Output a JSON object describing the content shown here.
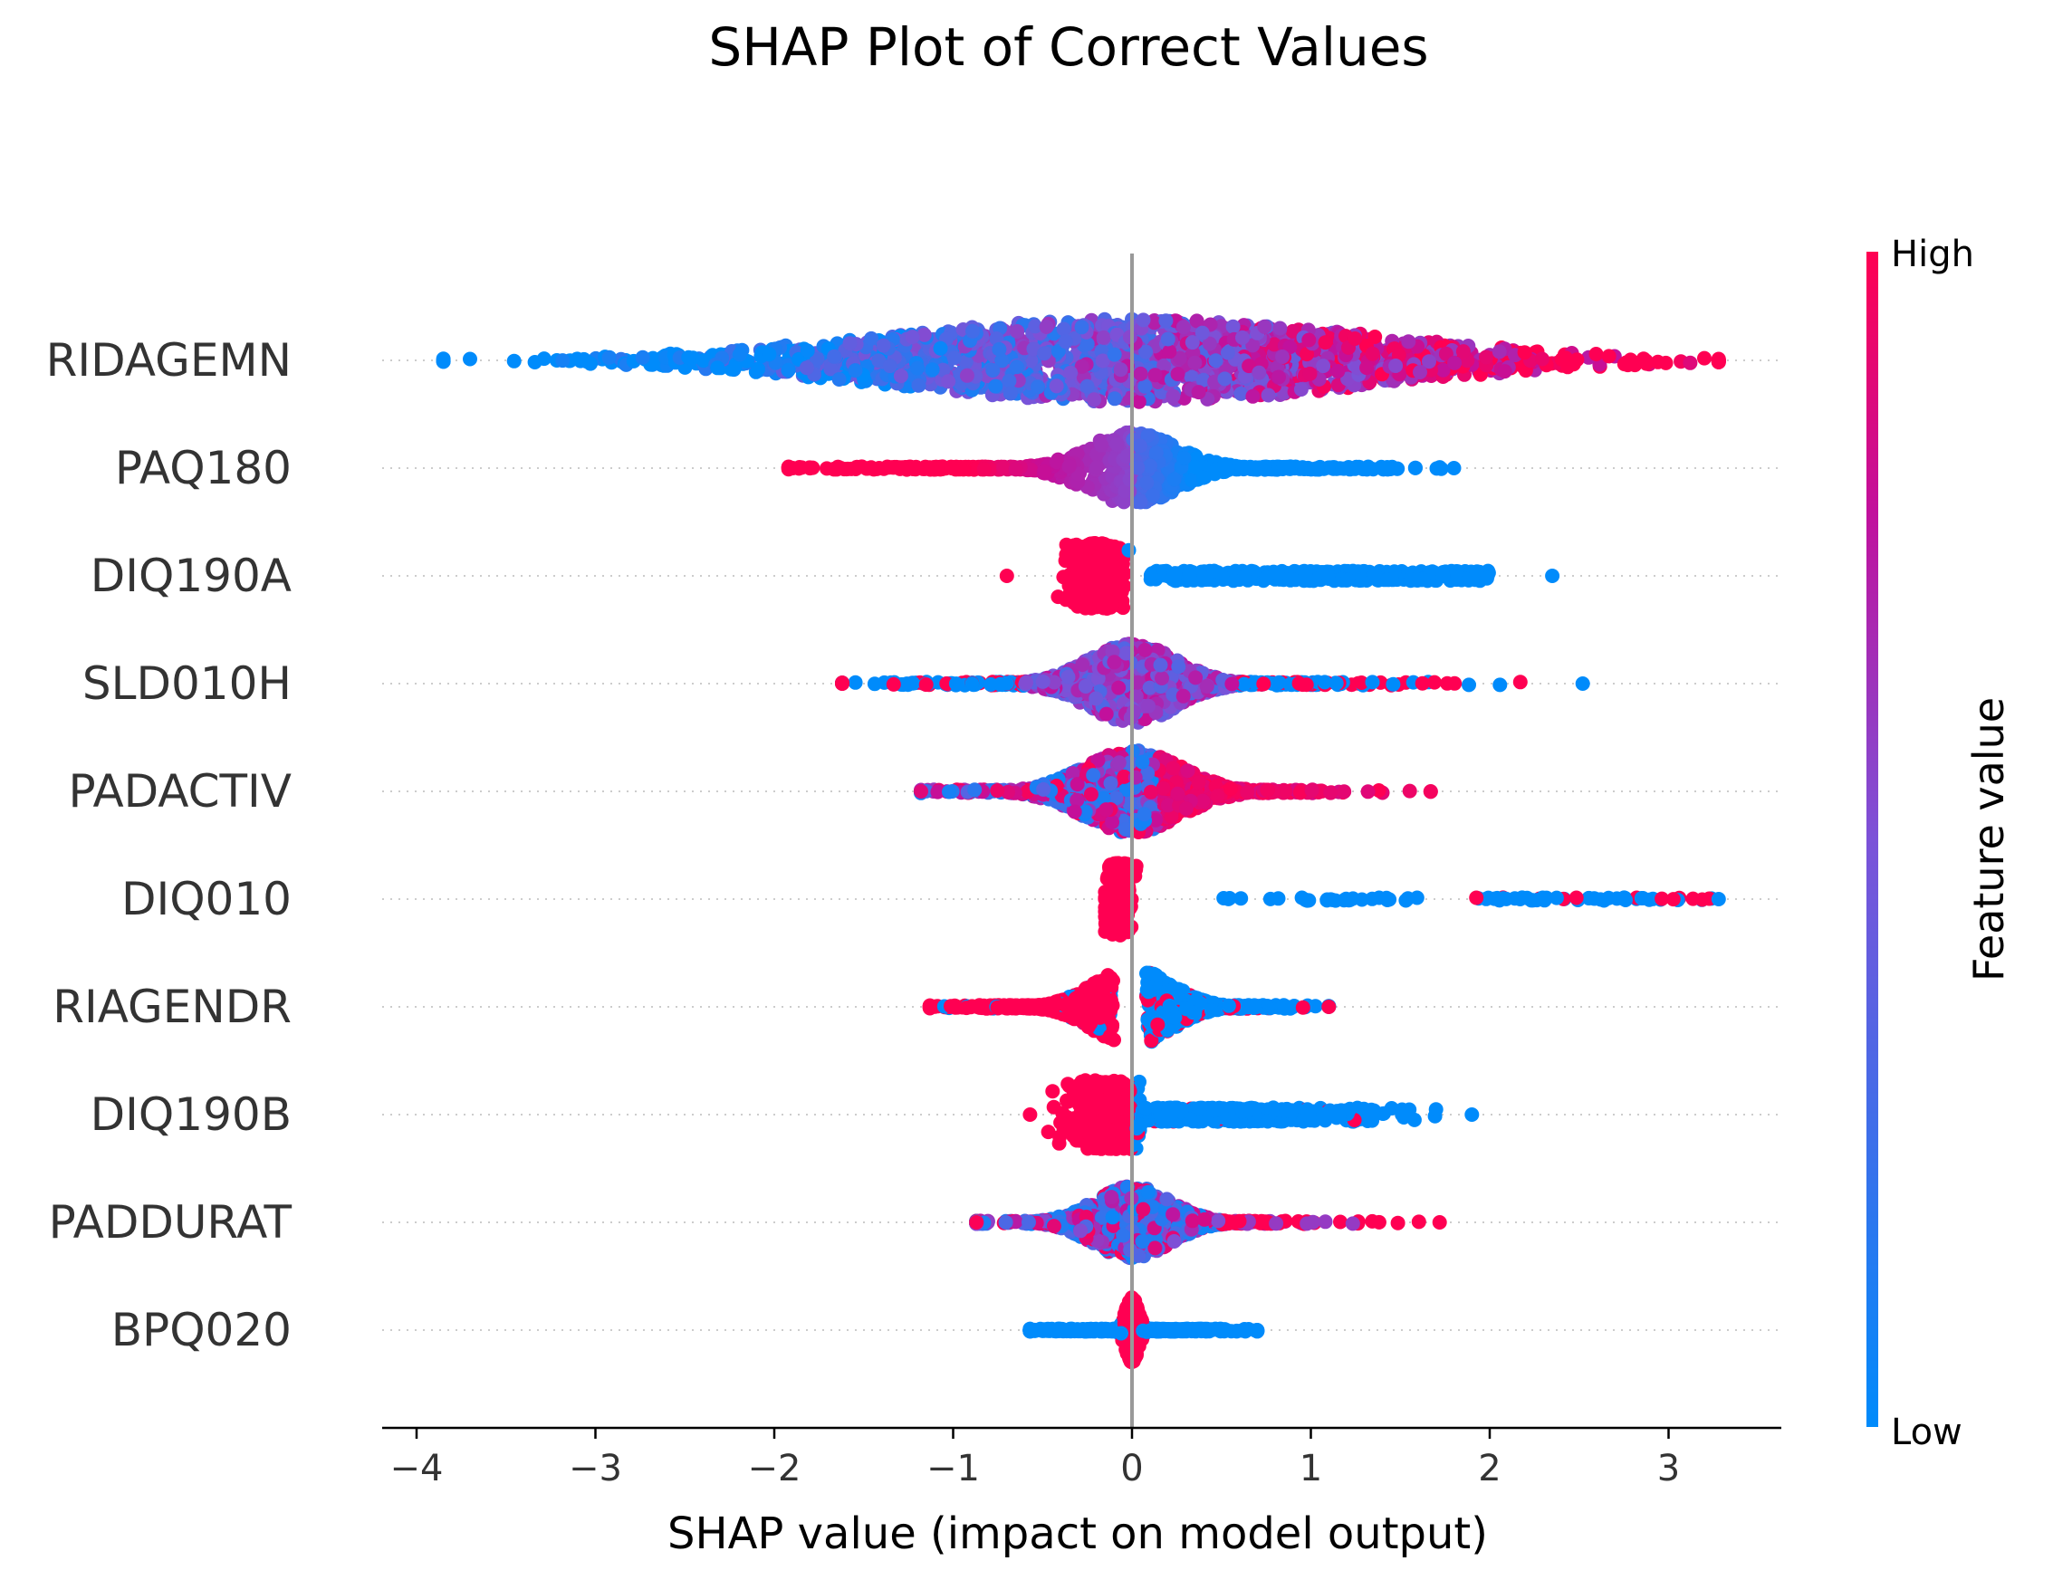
{
  "chart_data": {
    "type": "scatter",
    "subtype": "shap-beeswarm",
    "title": "SHAP Plot of Correct Values",
    "xlabel": "SHAP value (impact on model output)",
    "xlim": [
      -4.2,
      3.6
    ],
    "xticks": [
      -4,
      -3,
      -2,
      -1,
      0,
      1,
      2,
      3
    ],
    "xtick_labels": [
      "−4",
      "−3",
      "−2",
      "−1",
      "0",
      "1",
      "2",
      "3"
    ],
    "colorbar": {
      "label": "Feature value",
      "high_label": "High",
      "low_label": "Low",
      "low_color": "#008bfb",
      "high_color": "#ff0052"
    },
    "features": [
      {
        "name": "RIDAGEMN",
        "min": -3.85,
        "max": 3.28,
        "trend": "high-right"
      },
      {
        "name": "PAQ180",
        "min": -1.92,
        "max": 1.8,
        "trend": "high-left"
      },
      {
        "name": "DIQ190A",
        "min": -0.7,
        "max": 2.35,
        "trend": "high-left"
      },
      {
        "name": "SLD010H",
        "min": -1.62,
        "max": 2.52,
        "trend": "mixed"
      },
      {
        "name": "PADACTIV",
        "min": -1.18,
        "max": 1.67,
        "trend": "high-right"
      },
      {
        "name": "DIQ010",
        "min": -0.15,
        "max": 3.28,
        "trend": "high-left"
      },
      {
        "name": "RIAGENDR",
        "min": -1.13,
        "max": 1.1,
        "trend": "high-left"
      },
      {
        "name": "DIQ190B",
        "min": -0.57,
        "max": 1.9,
        "trend": "high-left"
      },
      {
        "name": "PADDURAT",
        "min": -0.87,
        "max": 1.72,
        "trend": "high-right"
      },
      {
        "name": "BPQ020",
        "min": -0.57,
        "max": 0.7,
        "trend": "high-left"
      }
    ]
  }
}
